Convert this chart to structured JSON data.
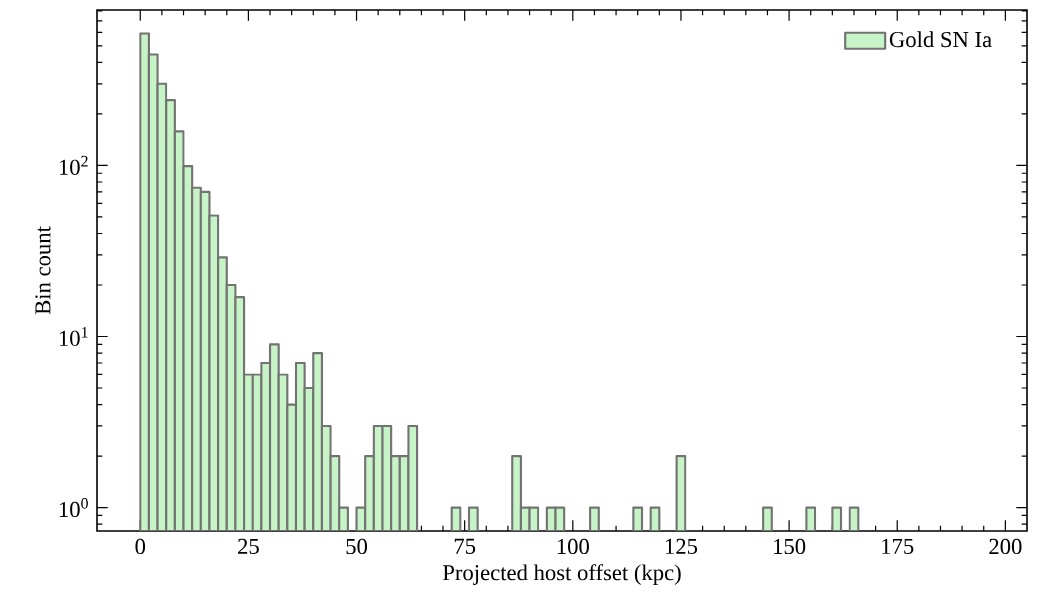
{
  "chart_data": {
    "type": "histogram",
    "xlabel": "Projected host offset (kpc)",
    "ylabel": "Bin count",
    "bins": [
      0,
      2,
      4,
      6,
      8,
      10,
      12,
      14,
      16,
      18,
      20,
      22,
      24,
      26,
      28,
      30,
      32,
      34,
      36,
      38,
      40,
      42,
      44,
      46,
      48,
      50,
      52,
      54,
      56,
      58,
      60,
      62,
      64,
      66,
      68,
      70,
      72,
      74,
      76,
      78,
      80,
      82,
      84,
      86,
      88,
      90,
      92,
      94,
      96,
      98,
      100,
      102,
      104,
      106,
      108,
      110,
      112,
      114,
      116,
      118,
      120,
      122,
      124,
      126,
      128,
      130,
      132,
      134,
      136,
      138,
      140,
      142,
      144,
      146,
      148,
      150,
      152,
      154,
      156,
      158,
      160,
      162,
      164,
      166
    ],
    "series": [
      {
        "name": "Gold SN Ia",
        "color": "#c7f4c7",
        "values": [
          590,
          445,
          300,
          241,
          158,
          99,
          74,
          70,
          51,
          29,
          20,
          17,
          6,
          6,
          7,
          9,
          6,
          4,
          7,
          5,
          8,
          3,
          2,
          1,
          null,
          1,
          2,
          3,
          3,
          2,
          2,
          3,
          null,
          null,
          null,
          null,
          1,
          null,
          1,
          null,
          null,
          null,
          null,
          2,
          1,
          1,
          null,
          1,
          1,
          null,
          null,
          null,
          1,
          null,
          null,
          null,
          null,
          1,
          null,
          1,
          null,
          null,
          2,
          null,
          null,
          null,
          null,
          null,
          null,
          null,
          null,
          null,
          1,
          null,
          null,
          null,
          null,
          1,
          null,
          null,
          1,
          null,
          1
        ]
      }
    ],
    "log": "y",
    "legend": "top right",
    "xlim": [
      -10,
      205
    ],
    "xticks": [
      0,
      25,
      50,
      75,
      100,
      125,
      150,
      175,
      200
    ],
    "ylim": [
      0.73,
      810
    ],
    "yticks": [
      {
        "value": 1,
        "label": "10$^{0}$"
      },
      {
        "value": 10,
        "label": "10$^{1}$"
      },
      {
        "value": 100,
        "label": "10$^{2}$"
      }
    ]
  }
}
